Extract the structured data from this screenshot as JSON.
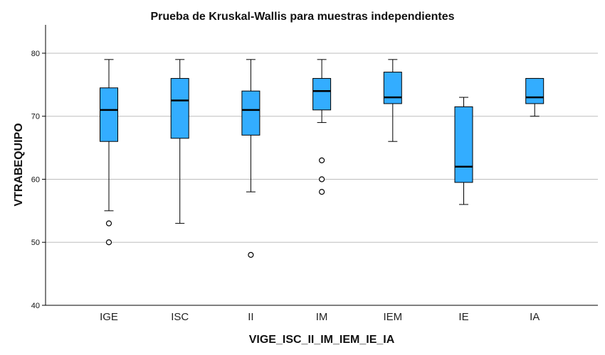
{
  "chart_data": {
    "type": "boxplot",
    "title": "Prueba de Kruskal-Wallis para muestras independientes",
    "xlabel": "VIGE_ISC_II_IM_IEM_IE_IA",
    "ylabel": "VTRABEQUIPO",
    "ylim": [
      40,
      84.5
    ],
    "yticks": [
      40,
      50,
      60,
      70,
      80
    ],
    "grid": true,
    "colors": {
      "box": "#33adff",
      "median": "#000000",
      "grid": "#bdbdbd",
      "axis": "#000000"
    },
    "categories": [
      "IGE",
      "ISC",
      "II",
      "IM",
      "IEM",
      "IE",
      "IA"
    ],
    "boxes": [
      {
        "category": "IGE",
        "whisker_low": 55,
        "q1": 66,
        "median": 71,
        "q3": 74.5,
        "whisker_high": 79,
        "outliers": [
          53,
          50
        ]
      },
      {
        "category": "ISC",
        "whisker_low": 53,
        "q1": 66.5,
        "median": 72.5,
        "q3": 76,
        "whisker_high": 79,
        "outliers": []
      },
      {
        "category": "II",
        "whisker_low": 58,
        "q1": 67,
        "median": 71,
        "q3": 74,
        "whisker_high": 79,
        "outliers": [
          48
        ]
      },
      {
        "category": "IM",
        "whisker_low": 69,
        "q1": 71,
        "median": 74,
        "q3": 76,
        "whisker_high": 79,
        "outliers": [
          63,
          60,
          58
        ]
      },
      {
        "category": "IEM",
        "whisker_low": 66,
        "q1": 72,
        "median": 73,
        "q3": 77,
        "whisker_high": 79,
        "outliers": []
      },
      {
        "category": "IE",
        "whisker_low": 56,
        "q1": 59.5,
        "median": 62,
        "q3": 71.5,
        "whisker_high": 73,
        "outliers": []
      },
      {
        "category": "IA",
        "whisker_low": 70,
        "q1": 72,
        "median": 73,
        "q3": 76,
        "whisker_high": 76,
        "outliers": []
      }
    ]
  }
}
